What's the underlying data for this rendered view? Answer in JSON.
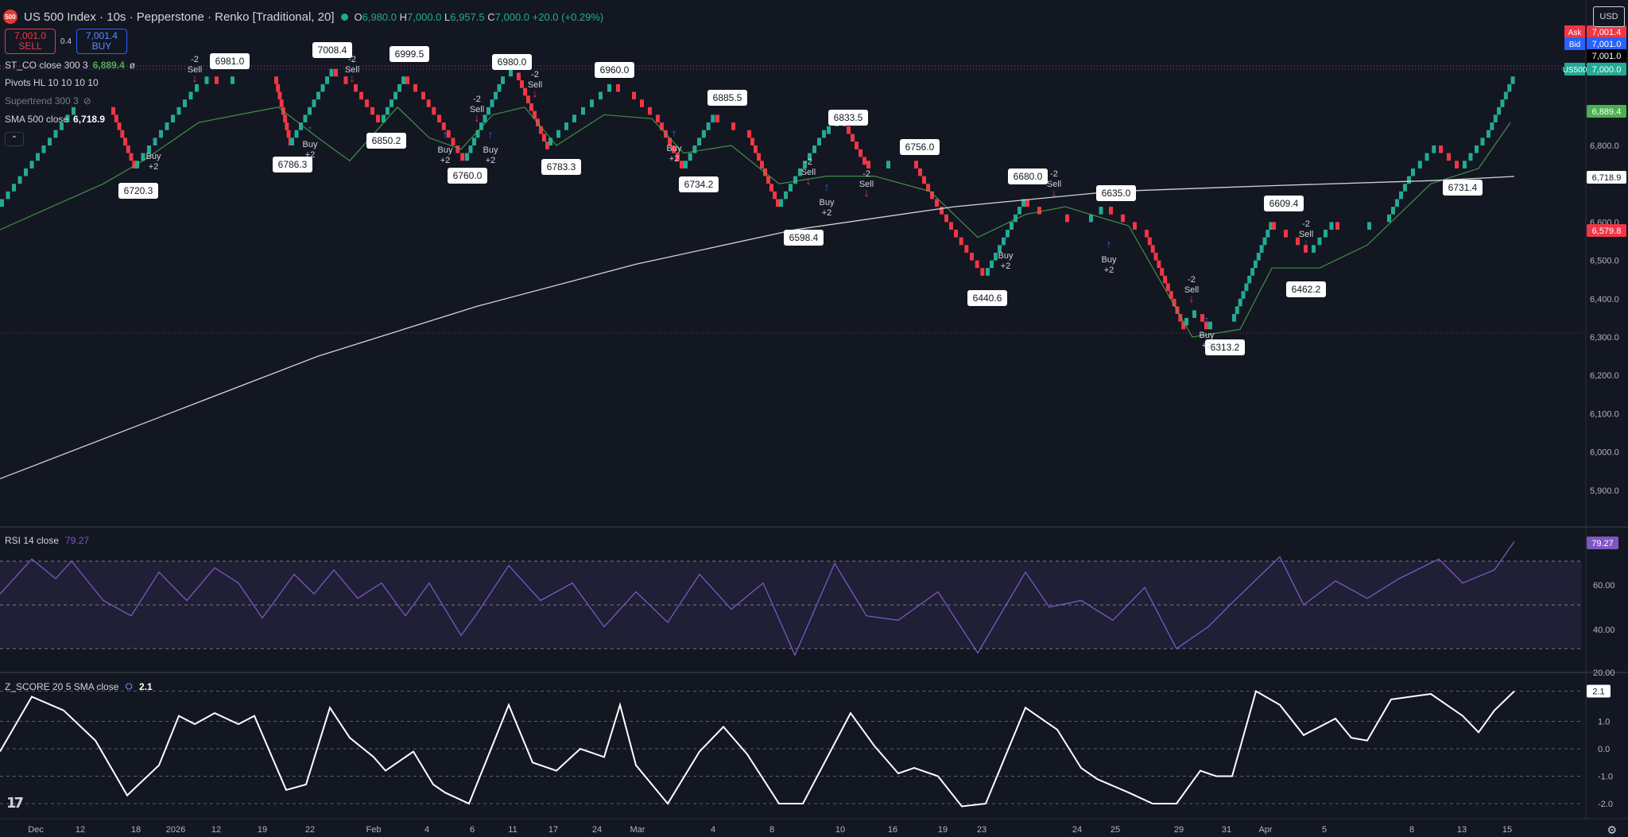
{
  "header": {
    "logo": "500",
    "title": "US 500 Index · 10s · Pepperstone · Renko [Traditional, 20]",
    "ohlc": [
      {
        "k": "O",
        "v": "6,980.0"
      },
      {
        "k": "H",
        "v": "7,000.0"
      },
      {
        "k": "L",
        "v": "6,957.5"
      },
      {
        "k": "C",
        "v": "7,000.0"
      },
      {
        "k": "",
        "v": "+20.0 (+0.29%)"
      }
    ]
  },
  "trade": {
    "sell_price": "7,001.0",
    "sell_label": "SELL",
    "spread": "0.4",
    "buy_price": "7,001.4",
    "buy_label": "BUY"
  },
  "indicators": {
    "st_co": {
      "name": "ST_CO close 300 3",
      "value": "6,889.4",
      "extra": "ø"
    },
    "pivots": {
      "name": "Pivots HL 10 10 10 10"
    },
    "supertrend": {
      "name": "Supertrend 300 3"
    },
    "sma": {
      "name": "SMA 500 close",
      "value": "6,718.9"
    },
    "rsi": {
      "name": "RSI 14 close",
      "value": "79.27"
    },
    "zscore": {
      "name": "Z_SCORE 20 5 SMA close",
      "value": "2.1"
    }
  },
  "currency": "USD",
  "colors": {
    "bg": "#131722",
    "up": "#22ab94",
    "down": "#f23645",
    "rsi": "#7e57c2",
    "sma": "#d1d4dc",
    "buy": "#2962ff"
  },
  "price_axis": {
    "ticks": [
      "6,800.0",
      "6,600.0",
      "6,500.0",
      "6,400.0",
      "6,300.0",
      "6,200.0",
      "6,100.0",
      "6,000.0",
      "5,900.0"
    ],
    "labels": [
      {
        "text": "Ask",
        "value": "7,001.4",
        "color": "#f23645"
      },
      {
        "text": "Bid",
        "value": "7,001.0",
        "color": "#2962ff"
      },
      {
        "text": "",
        "value": "7,001.0",
        "color": "#000000"
      },
      {
        "text": "US500",
        "value": "7,000.0",
        "color": "#22ab94"
      },
      {
        "text": "",
        "value": "6,889.4",
        "color": "#4caf50"
      },
      {
        "text": "",
        "value": "6,718.9",
        "color": "#ffffff"
      },
      {
        "text": "",
        "value": "6,579.8",
        "color": "#f23645"
      }
    ]
  },
  "rsi_axis": {
    "ticks": [
      "60.00",
      "40.00",
      "20.00"
    ],
    "current": "79.27"
  },
  "z_axis": {
    "ticks": [
      "2.1",
      "1.0",
      "0.0",
      "-1.0",
      "-2.0"
    ]
  },
  "x_axis": [
    "Dec",
    "12",
    "18",
    "2026",
    "12",
    "19",
    "22",
    "Feb",
    "4",
    "6",
    "11",
    "17",
    "24",
    "Mar",
    "4",
    "8",
    "10",
    "16",
    "19",
    "23",
    "24",
    "25",
    "29",
    "31",
    "Apr",
    "5",
    "8",
    "13",
    "15"
  ],
  "chart_data": {
    "type": "renko",
    "brick_size": 20,
    "pivot_labels": [
      "6720.3",
      "6981.0",
      "6786.3",
      "7008.4",
      "6850.2",
      "6999.5",
      "6760.0",
      "6980.0",
      "6783.3",
      "6960.0",
      "6734.2",
      "6885.5",
      "6598.4",
      "6833.5",
      "6756.0",
      "6440.6",
      "6680.0",
      "6635.0",
      "6313.2",
      "6609.4",
      "6462.2",
      "6731.4"
    ],
    "signals": [
      {
        "type": "sell",
        "text": "-2 Sell"
      },
      {
        "type": "buy",
        "text": "Buy +2"
      }
    ],
    "sma_value": 6718.9,
    "supertrend_value": 6889.4,
    "rsi_value": 79.27,
    "zscore_value": 2.1
  }
}
